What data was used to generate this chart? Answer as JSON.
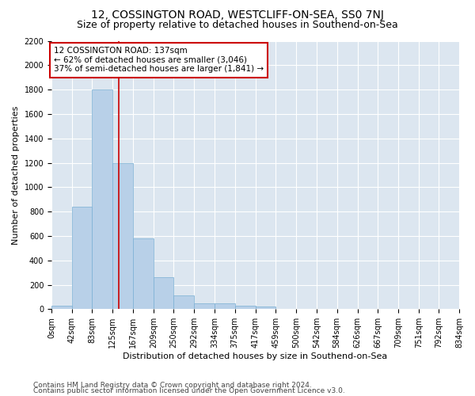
{
  "title": "12, COSSINGTON ROAD, WESTCLIFF-ON-SEA, SS0 7NJ",
  "subtitle": "Size of property relative to detached houses in Southend-on-Sea",
  "xlabel": "Distribution of detached houses by size in Southend-on-Sea",
  "ylabel": "Number of detached properties",
  "bin_edges": [
    0,
    42,
    83,
    125,
    167,
    209,
    250,
    292,
    334,
    375,
    417,
    459,
    500,
    542,
    584,
    626,
    667,
    709,
    751,
    792,
    834
  ],
  "bar_heights": [
    25,
    840,
    1800,
    1200,
    580,
    260,
    115,
    50,
    45,
    30,
    20,
    5,
    3,
    2,
    1,
    1,
    1,
    0,
    0,
    0
  ],
  "bar_color": "#b8d0e8",
  "bar_edgecolor": "#7aafd4",
  "vline_x": 137,
  "vline_color": "#cc0000",
  "annotation_text": "12 COSSINGTON ROAD: 137sqm\n← 62% of detached houses are smaller (3,046)\n37% of semi-detached houses are larger (1,841) →",
  "annotation_box_color": "#ffffff",
  "annotation_box_edgecolor": "#cc0000",
  "ylim": [
    0,
    2200
  ],
  "yticks": [
    0,
    200,
    400,
    600,
    800,
    1000,
    1200,
    1400,
    1600,
    1800,
    2000,
    2200
  ],
  "background_color": "#dce6f0",
  "footer_line1": "Contains HM Land Registry data © Crown copyright and database right 2024.",
  "footer_line2": "Contains public sector information licensed under the Open Government Licence v3.0.",
  "title_fontsize": 10,
  "subtitle_fontsize": 9,
  "axis_label_fontsize": 8,
  "tick_fontsize": 7,
  "annotation_fontsize": 7.5,
  "footer_fontsize": 6.5
}
